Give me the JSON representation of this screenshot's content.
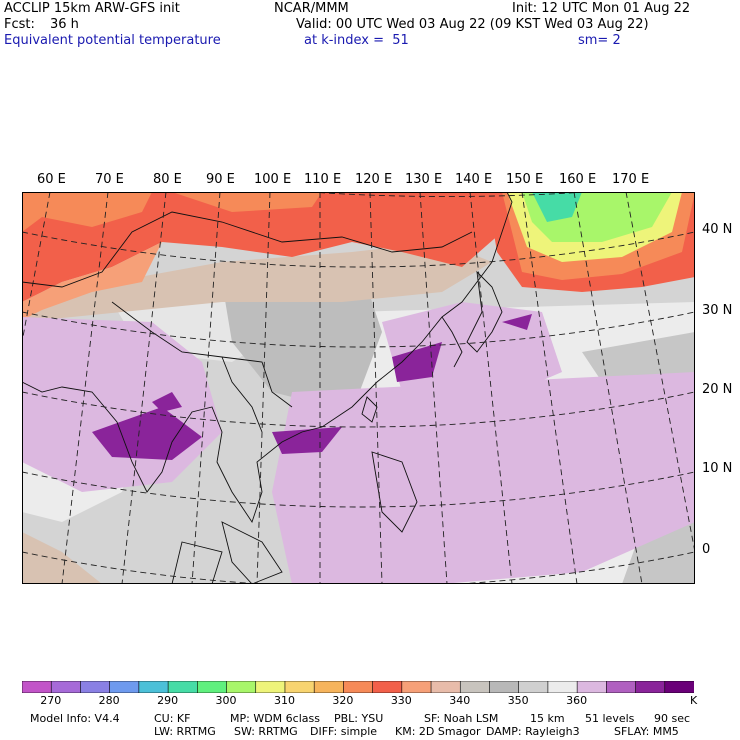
{
  "header": {
    "model": "ACCLIP 15km ARW-GFS init",
    "org": "NCAR/MMM",
    "init": "Init: 12 UTC Mon 01 Aug 22",
    "fcst_label": "Fcst:",
    "fcst_value": "36 h",
    "valid": "Valid: 00 UTC Wed 03 Aug 22 (09 KST Wed 03 Aug 22)",
    "field": "Equivalent potential temperature",
    "level": "at k-index =  51",
    "smooth": "sm= 2"
  },
  "map": {
    "lon_labels": [
      "60 E",
      "70 E",
      "80 E",
      "90 E",
      "100 E",
      "110 E",
      "120 E",
      "130 E",
      "140 E",
      "150 E",
      "160 E",
      "170 E"
    ],
    "lat_labels": [
      "40 N",
      "30 N",
      "20 N",
      "10 N",
      "0"
    ]
  },
  "colorbar": {
    "colors": [
      "#c254c8",
      "#a66ad8",
      "#8a80e4",
      "#6e9aee",
      "#4cc0d8",
      "#46dca6",
      "#60f07e",
      "#a8f66a",
      "#eef47a",
      "#f8d470",
      "#f6b45c",
      "#f68a58",
      "#f2604a",
      "#f6a078",
      "#e8bcaa",
      "#c8c4be",
      "#b8b8b8",
      "#d0d0d0",
      "#ececec",
      "#dcb8e0",
      "#b060c0",
      "#8a249a",
      "#6a0078"
    ],
    "labels": [
      "270",
      "280",
      "290",
      "300",
      "310",
      "320",
      "330",
      "340",
      "350",
      "360"
    ],
    "unit": "K"
  },
  "footer": {
    "line1": [
      "Model Info: V4.4",
      "CU: KF",
      "MP: WDM 6class",
      "PBL: YSU",
      "SF: Noah LSM",
      "15 km",
      "51 levels",
      "90 sec"
    ],
    "line2": [
      "LW: RRTMG",
      "SW: RRTMG",
      "DIFF: simple",
      "KM: 2D Smagor",
      "DAMP: Rayleigh3",
      "SFLAY: MM5"
    ]
  }
}
